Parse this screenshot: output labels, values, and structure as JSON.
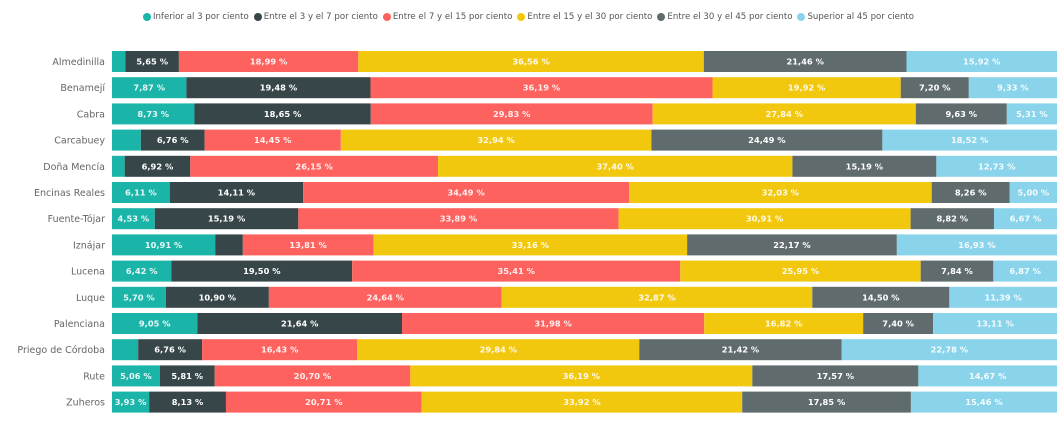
{
  "chart_data": {
    "type": "bar",
    "orientation": "horizontal",
    "stacked": true,
    "normalized": true,
    "legend_position": "top",
    "categories": [
      "Almedinilla",
      "Benamejí",
      "Cabra",
      "Carcabuey",
      "Doña Mencía",
      "Encinas Reales",
      "Fuente-Tójar",
      "Iznájar",
      "Lucena",
      "Luque",
      "Palenciana",
      "Priego de Córdoba",
      "Rute",
      "Zuheros"
    ],
    "series": [
      {
        "name": "Inferior al 3 por ciento",
        "color": "#1ab5a8",
        "values": [
          1.43,
          7.87,
          8.73,
          3.06,
          1.34,
          6.11,
          4.53,
          10.91,
          6.42,
          5.7,
          9.05,
          2.77,
          5.06,
          3.93
        ],
        "labels": [
          "",
          "7,87 %",
          "8,73 %",
          "",
          "",
          "6,11 %",
          "4,53 %",
          "10,91 %",
          "6,42 %",
          "5,70 %",
          "9,05 %",
          "",
          "5,06 %",
          "3,93 %"
        ]
      },
      {
        "name": "Entre el 3 y el 7 por ciento",
        "color": "#374649",
        "values": [
          5.65,
          19.48,
          18.65,
          6.76,
          6.92,
          14.11,
          15.19,
          2.92,
          19.5,
          10.9,
          21.64,
          6.76,
          5.81,
          8.13
        ],
        "labels": [
          "5,65 %",
          "19,48 %",
          "18,65 %",
          "6,76 %",
          "6,92 %",
          "14,11 %",
          "15,19 %",
          "",
          "19,50 %",
          "10,90 %",
          "21,64 %",
          "6,76 %",
          "5,81 %",
          "8,13 %"
        ]
      },
      {
        "name": "Entre el 7 y el 15 por ciento",
        "color": "#fd625e",
        "values": [
          18.99,
          36.19,
          29.83,
          14.45,
          26.15,
          34.49,
          33.89,
          13.81,
          35.41,
          24.64,
          31.98,
          16.43,
          20.7,
          20.71
        ],
        "labels": [
          "18,99 %",
          "36,19 %",
          "29,83 %",
          "14,45 %",
          "26,15 %",
          "34,49 %",
          "33,89 %",
          "13,81 %",
          "35,41 %",
          "24,64 %",
          "31,98 %",
          "16,43 %",
          "20,70 %",
          "20,71 %"
        ]
      },
      {
        "name": "Entre el 15 y el 30 por ciento",
        "color": "#f2c80f",
        "values": [
          36.56,
          19.92,
          27.84,
          32.94,
          37.4,
          32.03,
          30.91,
          33.16,
          25.95,
          32.87,
          16.82,
          29.84,
          36.19,
          33.92
        ],
        "labels": [
          "36,56 %",
          "19,92 %",
          "27,84 %",
          "32,94 %",
          "37,40 %",
          "32,03 %",
          "30,91 %",
          "33,16 %",
          "25,95 %",
          "32,87 %",
          "16,82 %",
          "29,84 %",
          "36,19 %",
          "33,92 %"
        ]
      },
      {
        "name": "Entre el 30 y el 45 por ciento",
        "color": "#5f6b6d",
        "values": [
          21.46,
          7.2,
          9.63,
          24.49,
          15.19,
          8.26,
          8.82,
          22.17,
          7.84,
          14.5,
          7.4,
          21.42,
          17.57,
          17.85
        ],
        "labels": [
          "21,46 %",
          "7,20 %",
          "9,63 %",
          "24,49 %",
          "15,19 %",
          "8,26 %",
          "8,82 %",
          "22,17 %",
          "7,84 %",
          "14,50 %",
          "7,40 %",
          "21,42 %",
          "17,57 %",
          "17,85 %"
        ]
      },
      {
        "name": "Superior al 45 por ciento",
        "color": "#8ad4eb",
        "values": [
          15.92,
          9.33,
          5.31,
          18.52,
          12.73,
          5.0,
          6.67,
          16.93,
          6.87,
          11.39,
          13.11,
          22.78,
          14.67,
          15.46
        ],
        "labels": [
          "15,92 %",
          "9,33 %",
          "5,31 %",
          "18,52 %",
          "12,73 %",
          "5,00 %",
          "6,67 %",
          "16,93 %",
          "6,87 %",
          "11,39 %",
          "13,11 %",
          "22,78 %",
          "14,67 %",
          "15,46 %"
        ]
      }
    ],
    "title": "",
    "xlabel": "",
    "ylabel": "",
    "grid": false
  }
}
